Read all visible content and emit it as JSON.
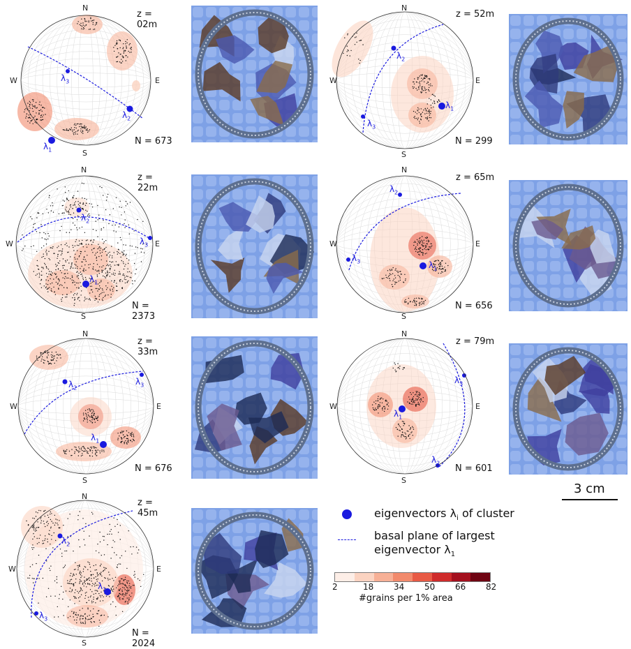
{
  "compass": {
    "n": "N",
    "s": "S",
    "e": "E",
    "w": "W"
  },
  "lambda_symbol": "λ",
  "panels": [
    {
      "depth": "z = 02m",
      "count": "N = 673"
    },
    {
      "depth": "z = 22m",
      "count": "N = 2373"
    },
    {
      "depth": "z = 33m",
      "count": "N = 676"
    },
    {
      "depth": "z = 45m",
      "count": "N = 2024"
    },
    {
      "depth": "z = 52m",
      "count": "N = 299"
    },
    {
      "depth": "z = 65m",
      "count": "N = 656"
    },
    {
      "depth": "z = 79m",
      "count": "N = 601"
    }
  ],
  "legend": {
    "eigen_label": "eigenvectors λ",
    "eigen_sub": "i",
    "eigen_suffix": " of cluster",
    "plane_line1": "basal plane of largest",
    "plane_line2": "eigenvector λ",
    "plane_sub": "1",
    "colorbar_ticks": [
      "2",
      "18",
      "34",
      "50",
      "66",
      "82"
    ],
    "colorbar_title": "#grains per 1% area",
    "colorbar_colors": [
      "#fdeee7",
      "#fbd3c1",
      "#f7b096",
      "#f28a6c",
      "#e85a45",
      "#cf2b2b",
      "#a4101e",
      "#6f0412"
    ]
  },
  "scale": {
    "label": "3 cm"
  },
  "colors": {
    "accent": "#1a1adf",
    "density": "#f2a084"
  }
}
